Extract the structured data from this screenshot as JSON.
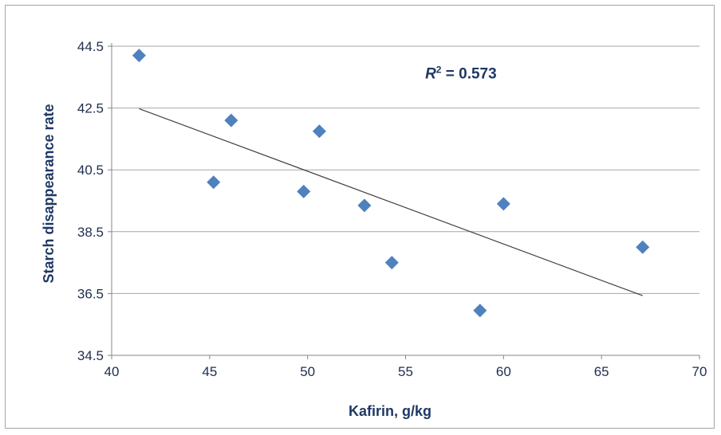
{
  "chart_data": {
    "type": "scatter",
    "xlabel": "Kafirin, g/kg",
    "ylabel": "Starch disappearance rate",
    "xlim": [
      40,
      70
    ],
    "ylim": [
      34.5,
      44.5
    ],
    "x_ticks": [
      "40",
      "45",
      "50",
      "55",
      "60",
      "65",
      "70"
    ],
    "y_ticks": [
      "34.5",
      "36.5",
      "38.5",
      "40.5",
      "42.5",
      "44.5"
    ],
    "x_tick_values": [
      40,
      45,
      50,
      55,
      60,
      65,
      70
    ],
    "y_tick_values": [
      34.5,
      36.5,
      38.5,
      40.5,
      42.5,
      44.5
    ],
    "grid": "horizontal",
    "series": [
      {
        "marker": "diamond",
        "color": "#4f81bd",
        "points": [
          {
            "x": 41.4,
            "y": 44.2
          },
          {
            "x": 45.2,
            "y": 40.1
          },
          {
            "x": 46.1,
            "y": 42.1
          },
          {
            "x": 49.8,
            "y": 39.8
          },
          {
            "x": 50.6,
            "y": 41.75
          },
          {
            "x": 52.9,
            "y": 39.35
          },
          {
            "x": 54.3,
            "y": 37.5
          },
          {
            "x": 58.8,
            "y": 35.95
          },
          {
            "x": 60.0,
            "y": 39.4
          },
          {
            "x": 67.1,
            "y": 38.0
          }
        ]
      }
    ],
    "trendline": {
      "type": "linear",
      "color": "#404040",
      "from": {
        "x": 41.4,
        "y": 42.48
      },
      "to": {
        "x": 67.1,
        "y": 36.43
      }
    },
    "annotation": {
      "r_symbol": "R",
      "superscript": "2",
      "value_text": " = 0.573",
      "x": 56.0,
      "y": 43.45
    },
    "colors": {
      "axis_title": "#1f3864",
      "tick_label": "#1f2d4f",
      "gridline": "#a6a6a6",
      "axis_line": "#868686"
    }
  }
}
